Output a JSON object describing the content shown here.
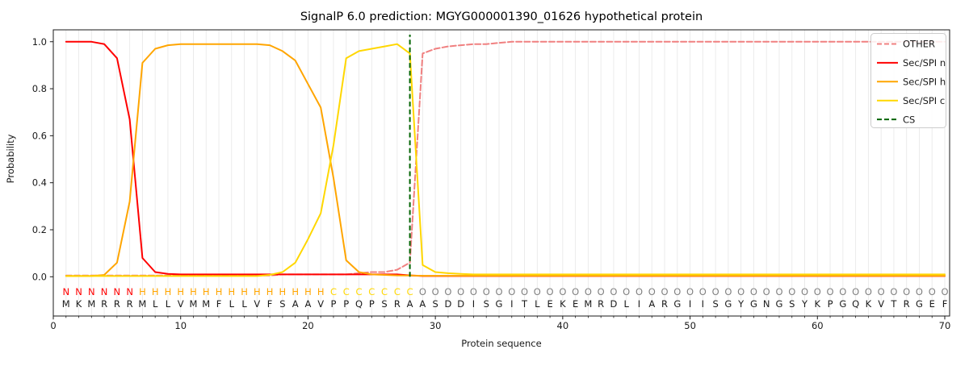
{
  "chart_data": {
    "type": "line",
    "title": "SignalP 6.0 prediction: MGYG000001390_01626 hypothetical protein",
    "xlabel": "Protein sequence",
    "ylabel": "Probability",
    "xlim": [
      0,
      70.4
    ],
    "ylim": [
      -0.17,
      1.05
    ],
    "xticks": [
      0,
      10,
      20,
      30,
      40,
      50,
      60,
      70
    ],
    "yticks": [
      0.0,
      0.2,
      0.4,
      0.6,
      0.8,
      1.0
    ],
    "grid": {
      "vertical": true,
      "horizontal": false,
      "color": "#e9e9e9"
    },
    "legend_position": "upper right",
    "x_range": [
      1,
      70
    ],
    "series": [
      {
        "name": "OTHER",
        "color": "#f08080",
        "style": "dashed",
        "type": "line",
        "values": [
          0.005,
          0.005,
          0.005,
          0.005,
          0.005,
          0.005,
          0.005,
          0.005,
          0.005,
          0.005,
          0.005,
          0.005,
          0.005,
          0.005,
          0.005,
          0.005,
          0.005,
          0.01,
          0.01,
          0.01,
          0.01,
          0.01,
          0.01,
          0.015,
          0.02,
          0.02,
          0.03,
          0.06,
          0.95,
          0.97,
          0.98,
          0.985,
          0.99,
          0.99,
          0.995,
          1.0,
          1.0,
          1.0,
          1.0,
          1.0,
          1.0,
          1.0,
          1.0,
          1.0,
          1.0,
          1.0,
          1.0,
          1.0,
          1.0,
          1.0,
          1.0,
          1.0,
          1.0,
          1.0,
          1.0,
          1.0,
          1.0,
          1.0,
          1.0,
          1.0,
          1.0,
          1.0,
          1.0,
          1.0,
          1.0,
          1.0,
          1.0,
          1.0,
          1.0,
          1.0
        ]
      },
      {
        "name": "Sec/SPI n",
        "color": "#ff0000",
        "style": "solid",
        "type": "line",
        "values": [
          1.0,
          1.0,
          1.0,
          0.99,
          0.93,
          0.67,
          0.08,
          0.02,
          0.012,
          0.01,
          0.01,
          0.01,
          0.01,
          0.01,
          0.01,
          0.01,
          0.01,
          0.01,
          0.01,
          0.01,
          0.01,
          0.01,
          0.01,
          0.01,
          0.01,
          0.01,
          0.01,
          0.006,
          0.003,
          0.003,
          0.003,
          0.003,
          0.003,
          0.003,
          0.003,
          0.003,
          0.003,
          0.003,
          0.003,
          0.003,
          0.003,
          0.003,
          0.003,
          0.003,
          0.003,
          0.003,
          0.003,
          0.003,
          0.003,
          0.003,
          0.003,
          0.003,
          0.003,
          0.003,
          0.003,
          0.003,
          0.003,
          0.003,
          0.003,
          0.003,
          0.003,
          0.003,
          0.003,
          0.003,
          0.003,
          0.003,
          0.003,
          0.003,
          0.003,
          0.003
        ]
      },
      {
        "name": "Sec/SPI h",
        "color": "#ffa500",
        "style": "solid",
        "type": "line",
        "values": [
          0.003,
          0.003,
          0.003,
          0.008,
          0.06,
          0.32,
          0.91,
          0.97,
          0.985,
          0.99,
          0.99,
          0.99,
          0.99,
          0.99,
          0.99,
          0.99,
          0.985,
          0.96,
          0.92,
          0.82,
          0.72,
          0.42,
          0.07,
          0.02,
          0.01,
          0.008,
          0.006,
          0.005,
          0.004,
          0.004,
          0.004,
          0.004,
          0.004,
          0.004,
          0.004,
          0.004,
          0.004,
          0.004,
          0.004,
          0.004,
          0.004,
          0.004,
          0.004,
          0.004,
          0.004,
          0.004,
          0.004,
          0.004,
          0.004,
          0.004,
          0.004,
          0.004,
          0.004,
          0.004,
          0.004,
          0.004,
          0.004,
          0.004,
          0.004,
          0.004,
          0.004,
          0.004,
          0.004,
          0.004,
          0.004,
          0.004,
          0.004,
          0.004,
          0.004,
          0.004
        ]
      },
      {
        "name": "Sec/SPI c",
        "color": "#ffd700",
        "style": "solid",
        "type": "line",
        "values": [
          0.003,
          0.003,
          0.003,
          0.003,
          0.003,
          0.003,
          0.003,
          0.003,
          0.003,
          0.003,
          0.003,
          0.003,
          0.003,
          0.003,
          0.003,
          0.003,
          0.008,
          0.02,
          0.06,
          0.16,
          0.27,
          0.56,
          0.93,
          0.96,
          0.97,
          0.98,
          0.99,
          0.95,
          0.05,
          0.02,
          0.015,
          0.012,
          0.01,
          0.01,
          0.01,
          0.01,
          0.01,
          0.01,
          0.01,
          0.01,
          0.01,
          0.01,
          0.01,
          0.01,
          0.01,
          0.01,
          0.01,
          0.01,
          0.01,
          0.01,
          0.01,
          0.01,
          0.01,
          0.01,
          0.01,
          0.01,
          0.01,
          0.01,
          0.01,
          0.01,
          0.01,
          0.01,
          0.01,
          0.01,
          0.01,
          0.01,
          0.01,
          0.01,
          0.01,
          0.01
        ]
      },
      {
        "name": "CS",
        "color": "#006400",
        "style": "dashed",
        "type": "vline",
        "x": 28
      }
    ],
    "sequence": "MKMRRRMLLVMMFLLVFSAAVPPQPSRAASDDISGITLEKEMRDLIARGIISGYGNGSYKPGQKVTRGEF",
    "region_labels": "NNNNNNHHHHHHHHHHHHHHHCCCCCCCOOOOOOOOOOOOOOOOOOOOOOOOOOOOOOOOOOOOOOOOOO",
    "label_colors": {
      "N": "#ff0000",
      "H": "#ffa500",
      "C": "#ffd700",
      "O": "#808080"
    },
    "sequence_color": "#1a1a1a",
    "axis_color": "#1a1a1a",
    "legend_border_color": "#cccccc"
  }
}
